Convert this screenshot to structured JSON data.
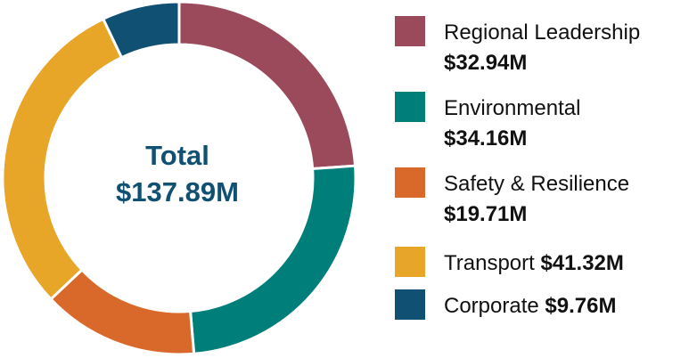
{
  "chart_data": {
    "type": "donut",
    "center_title": "Total",
    "center_value": "$137.89M",
    "categories": [
      "Regional Leadership",
      "Environmental",
      "Safety & Resilience",
      "Transport",
      "Corporate"
    ],
    "values": [
      32.94,
      34.16,
      19.71,
      41.32,
      9.76
    ],
    "value_labels": [
      "$32.94M",
      "$34.16M",
      "$19.71M",
      "$41.32M",
      "$9.76M"
    ],
    "colors": [
      "#9b4a5c",
      "#007f7a",
      "#d9692a",
      "#e8a628",
      "#0f5073"
    ]
  }
}
